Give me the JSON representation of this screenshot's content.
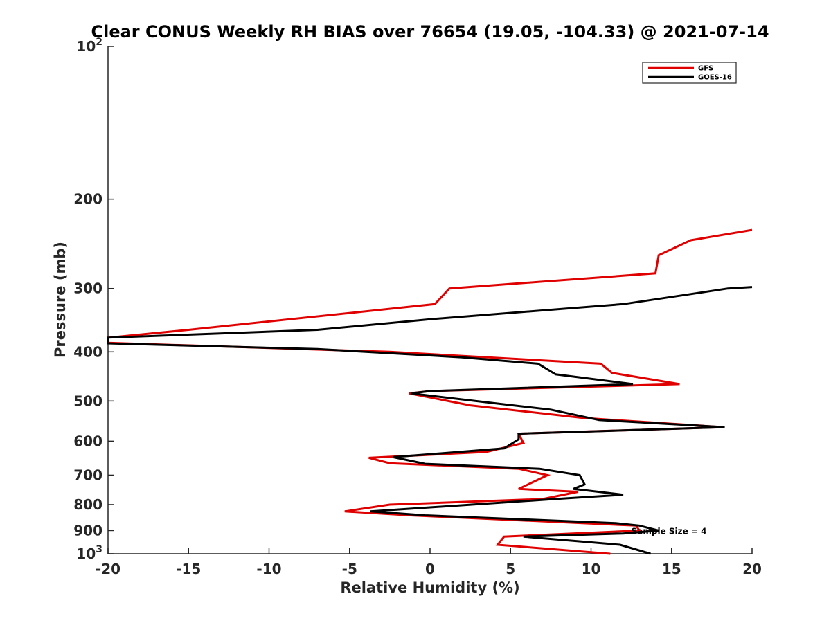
{
  "chart_data": {
    "type": "line",
    "title": "Clear CONUS Weekly RH BIAS over 76654 (19.05, -104.33) @ 2021-07-14",
    "xlabel": "Relative Humidity (%)",
    "ylabel": "Pressure (mb)",
    "xlim": [
      -20,
      20
    ],
    "ylim": [
      100,
      1000
    ],
    "yscale": "log",
    "yreversed": true,
    "xticks": [
      -20,
      -15,
      -10,
      -5,
      0,
      5,
      10,
      15,
      20
    ],
    "xtick_labels": [
      "-20",
      "-15",
      "-10",
      "-5",
      "0",
      "5",
      "10",
      "15",
      "20"
    ],
    "yticks": [
      100,
      200,
      300,
      400,
      500,
      600,
      700,
      800,
      900,
      1000
    ],
    "ytick_labels": [
      {
        "base": "10",
        "exp": "2"
      },
      {
        "base": "200",
        "exp": ""
      },
      {
        "base": "300",
        "exp": ""
      },
      {
        "base": "400",
        "exp": ""
      },
      {
        "base": "500",
        "exp": ""
      },
      {
        "base": "600",
        "exp": ""
      },
      {
        "base": "700",
        "exp": ""
      },
      {
        "base": "800",
        "exp": ""
      },
      {
        "base": "900",
        "exp": ""
      },
      {
        "base": "10",
        "exp": "3"
      }
    ],
    "legend_position": "top-right",
    "annotation": "Sample Size = 4",
    "annotation_at": {
      "x": 12.5,
      "y": 900
    },
    "series": [
      {
        "name": "GFS",
        "color": "#e00000",
        "points": [
          [
            20,
            230
          ],
          [
            16.2,
            241
          ],
          [
            14.2,
            258
          ],
          [
            14.0,
            280
          ],
          [
            1.2,
            300
          ],
          [
            0.3,
            322
          ],
          [
            -15,
            362
          ],
          [
            -20,
            375
          ],
          [
            -20,
            384
          ],
          [
            -2.5,
            400
          ],
          [
            10.6,
            422
          ],
          [
            11.3,
            440
          ],
          [
            15.5,
            463
          ],
          [
            0,
            478
          ],
          [
            -1.3,
            483
          ],
          [
            2.5,
            510
          ],
          [
            9.5,
            540
          ],
          [
            18.2,
            563
          ],
          [
            5.5,
            580
          ],
          [
            5.8,
            605
          ],
          [
            3.5,
            630
          ],
          [
            -3.8,
            647
          ],
          [
            -2.5,
            663
          ],
          [
            5.5,
            680
          ],
          [
            7.3,
            700
          ],
          [
            5.5,
            745
          ],
          [
            9.2,
            755
          ],
          [
            7.0,
            780
          ],
          [
            -2.5,
            800
          ],
          [
            -5.3,
            825
          ],
          [
            -1.2,
            840
          ],
          [
            12.8,
            880
          ],
          [
            13.0,
            900
          ],
          [
            4.6,
            925
          ],
          [
            4.2,
            960
          ],
          [
            11.2,
            1000
          ]
        ]
      },
      {
        "name": "GOES-16",
        "color": "#000000",
        "points": [
          [
            20,
            298
          ],
          [
            18.5,
            300
          ],
          [
            15.5,
            310
          ],
          [
            12.0,
            322
          ],
          [
            0,
            345
          ],
          [
            -7,
            362
          ],
          [
            -20,
            375
          ],
          [
            -20,
            385
          ],
          [
            -7,
            395
          ],
          [
            2,
            410
          ],
          [
            6.7,
            422
          ],
          [
            7.8,
            443
          ],
          [
            12.6,
            463
          ],
          [
            0,
            478
          ],
          [
            -1.2,
            483
          ],
          [
            4,
            505
          ],
          [
            7.5,
            520
          ],
          [
            10.5,
            545
          ],
          [
            18.3,
            563
          ],
          [
            5.5,
            580
          ],
          [
            5.5,
            595
          ],
          [
            4.6,
            620
          ],
          [
            -2.3,
            645
          ],
          [
            -0.3,
            665
          ],
          [
            6.8,
            680
          ],
          [
            9.3,
            700
          ],
          [
            9.6,
            730
          ],
          [
            8.9,
            745
          ],
          [
            12.0,
            765
          ],
          [
            7.8,
            780
          ],
          [
            -3.7,
            825
          ],
          [
            -0.3,
            840
          ],
          [
            11.5,
            870
          ],
          [
            13.0,
            880
          ],
          [
            14.2,
            900
          ],
          [
            12.0,
            912
          ],
          [
            5.8,
            925
          ],
          [
            11.8,
            960
          ],
          [
            13.7,
            1000
          ]
        ]
      }
    ]
  }
}
